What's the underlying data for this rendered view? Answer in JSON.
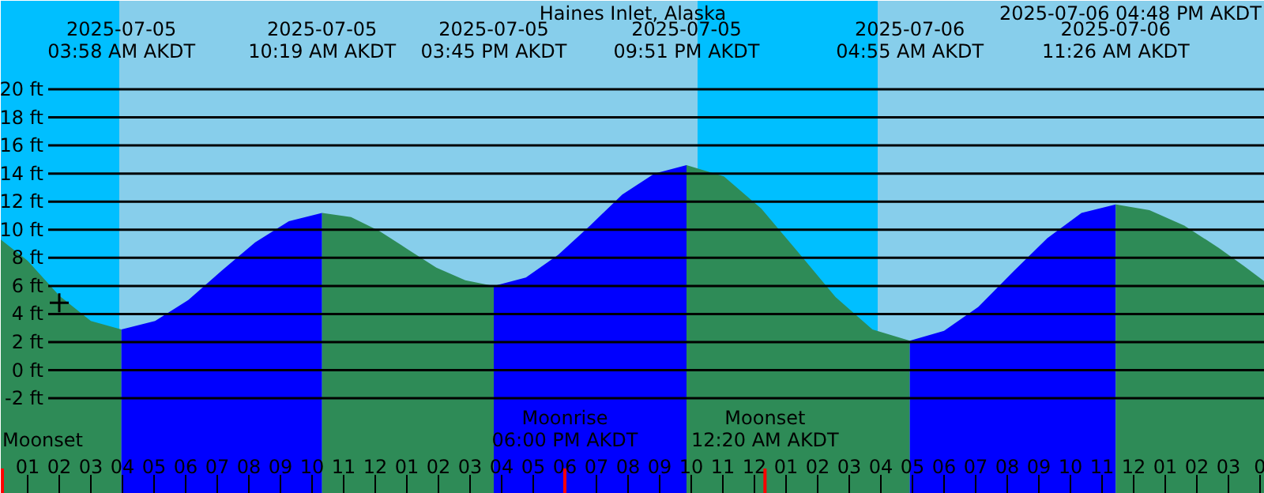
{
  "chart_data": {
    "type": "area",
    "title": "Haines Inlet, Alaska",
    "xlim": [
      "2025-07-05T00:09",
      "2025-07-06T16:09"
    ],
    "ylim": [
      -8.8,
      26.3
    ],
    "xticks": [
      {
        "value": "2025-07-05T01:00",
        "label": "01"
      },
      {
        "value": "2025-07-05T02:00",
        "label": "02"
      },
      {
        "value": "2025-07-05T03:00",
        "label": "03"
      },
      {
        "value": "2025-07-05T04:00",
        "label": "04"
      },
      {
        "value": "2025-07-05T05:00",
        "label": "05"
      },
      {
        "value": "2025-07-05T06:00",
        "label": "06"
      },
      {
        "value": "2025-07-05T07:00",
        "label": "07"
      },
      {
        "value": "2025-07-05T08:00",
        "label": "08"
      },
      {
        "value": "2025-07-05T09:00",
        "label": "09"
      },
      {
        "value": "2025-07-05T10:00",
        "label": "10"
      },
      {
        "value": "2025-07-05T11:00",
        "label": "11"
      },
      {
        "value": "2025-07-05T12:00",
        "label": "12"
      },
      {
        "value": "2025-07-05T13:00",
        "label": "01"
      },
      {
        "value": "2025-07-05T14:00",
        "label": "02"
      },
      {
        "value": "2025-07-05T15:00",
        "label": "03"
      },
      {
        "value": "2025-07-05T16:00",
        "label": "04"
      },
      {
        "value": "2025-07-05T17:00",
        "label": "05"
      },
      {
        "value": "2025-07-05T18:00",
        "label": "06"
      },
      {
        "value": "2025-07-05T19:00",
        "label": "07"
      },
      {
        "value": "2025-07-05T20:00",
        "label": "08"
      },
      {
        "value": "2025-07-05T21:00",
        "label": "09"
      },
      {
        "value": "2025-07-05T22:00",
        "label": "10"
      },
      {
        "value": "2025-07-05T23:00",
        "label": "11"
      },
      {
        "value": "2025-07-06T00:00",
        "label": "12"
      },
      {
        "value": "2025-07-06T01:00",
        "label": "01"
      },
      {
        "value": "2025-07-06T02:00",
        "label": "02"
      },
      {
        "value": "2025-07-06T03:00",
        "label": "03"
      },
      {
        "value": "2025-07-06T04:00",
        "label": "04"
      },
      {
        "value": "2025-07-06T05:00",
        "label": "05"
      },
      {
        "value": "2025-07-06T06:00",
        "label": "06"
      },
      {
        "value": "2025-07-06T07:00",
        "label": "07"
      },
      {
        "value": "2025-07-06T08:00",
        "label": "08"
      },
      {
        "value": "2025-07-06T09:00",
        "label": "09"
      },
      {
        "value": "2025-07-06T10:00",
        "label": "10"
      },
      {
        "value": "2025-07-06T11:00",
        "label": "11"
      },
      {
        "value": "2025-07-06T12:00",
        "label": "12"
      },
      {
        "value": "2025-07-06T13:00",
        "label": "01"
      },
      {
        "value": "2025-07-06T14:00",
        "label": "02"
      },
      {
        "value": "2025-07-06T15:00",
        "label": "03"
      },
      {
        "value": "2025-07-06T16:00",
        "label": "0"
      }
    ],
    "yticks": [
      {
        "value": -2,
        "label": "-2 ft"
      },
      {
        "value": 0,
        "label": "0 ft"
      },
      {
        "value": 2,
        "label": "2 ft"
      },
      {
        "value": 4,
        "label": "4 ft"
      },
      {
        "value": 6,
        "label": "6 ft"
      },
      {
        "value": 8,
        "label": "8 ft"
      },
      {
        "value": 10,
        "label": "10 ft"
      },
      {
        "value": 12,
        "label": "12 ft"
      },
      {
        "value": 14,
        "label": "14 ft"
      },
      {
        "value": 16,
        "label": "16 ft"
      },
      {
        "value": 18,
        "label": "18 ft"
      },
      {
        "value": 20,
        "label": "20 ft"
      }
    ],
    "grid": "y",
    "series": [
      {
        "color": "#2e8b57",
        "x": [
          "2025-07-05T00:09",
          "2025-07-05T01:00",
          "2025-07-05T02:00",
          "2025-07-05T03:00",
          "2025-07-05T03:58"
        ],
        "values": [
          9.3,
          7.8,
          5.3,
          3.5,
          2.9
        ]
      },
      {
        "color": "#0000ff",
        "x": [
          "2025-07-05T03:58",
          "2025-07-05T05:02",
          "2025-07-05T06:05",
          "2025-07-05T07:09",
          "2025-07-05T08:12",
          "2025-07-05T09:16",
          "2025-07-05T10:19"
        ],
        "values": [
          2.9,
          3.5,
          5.0,
          7.1,
          9.1,
          10.6,
          11.2
        ]
      },
      {
        "color": "#2e8b57",
        "x": [
          "2025-07-05T10:19",
          "2025-07-05T11:14",
          "2025-07-05T12:08",
          "2025-07-05T13:02",
          "2025-07-05T13:56",
          "2025-07-05T14:51",
          "2025-07-05T15:45"
        ],
        "values": [
          11.2,
          10.9,
          9.9,
          8.6,
          7.3,
          6.4,
          6.0
        ]
      },
      {
        "color": "#0000ff",
        "x": [
          "2025-07-05T15:45",
          "2025-07-05T16:46",
          "2025-07-05T17:47",
          "2025-07-05T18:48",
          "2025-07-05T19:49",
          "2025-07-05T20:50",
          "2025-07-05T21:51"
        ],
        "values": [
          6.0,
          6.6,
          8.2,
          10.3,
          12.5,
          14.0,
          14.6
        ]
      },
      {
        "color": "#2e8b57",
        "x": [
          "2025-07-05T21:51",
          "2025-07-05T23:02",
          "2025-07-06T00:13",
          "2025-07-06T01:23",
          "2025-07-06T02:34",
          "2025-07-06T03:44",
          "2025-07-06T04:55"
        ],
        "values": [
          14.6,
          13.8,
          11.5,
          8.4,
          5.2,
          2.9,
          2.1
        ]
      },
      {
        "color": "#0000ff",
        "x": [
          "2025-07-06T04:55",
          "2025-07-06T06:00",
          "2025-07-06T07:05",
          "2025-07-06T08:11",
          "2025-07-06T09:16",
          "2025-07-06T10:21",
          "2025-07-06T11:26"
        ],
        "values": [
          2.1,
          2.8,
          4.5,
          7.0,
          9.4,
          11.2,
          11.8
        ]
      },
      {
        "color": "#2e8b57",
        "x": [
          "2025-07-06T11:26",
          "2025-07-06T12:30",
          "2025-07-06T13:36",
          "2025-07-06T14:42",
          "2025-07-06T15:30",
          "2025-07-06T16:09"
        ],
        "values": [
          11.8,
          11.4,
          10.3,
          8.7,
          7.4,
          6.3
        ]
      },
      {
        "type": "scatter",
        "marker": "cross",
        "color": "#000000",
        "x": [
          "2025-07-05T02:00"
        ],
        "values": [
          4.8
        ]
      }
    ],
    "bands": [
      {
        "axis": "x",
        "from": "2025-07-05T00:09",
        "to": "2025-07-05T03:54",
        "color": "#00bfff"
      },
      {
        "axis": "x",
        "from": "2025-07-05T22:12",
        "to": "2025-07-06T03:54",
        "color": "#00bfff"
      }
    ],
    "ref_lines": [
      {
        "axis": "x",
        "value": "2025-07-05T00:12",
        "label": "Moonset",
        "color": "#ff0000"
      },
      {
        "axis": "x",
        "value": "2025-07-05T18:00",
        "label": "Moonrise\n06:00 PM AKDT",
        "color": "#ff0000"
      },
      {
        "axis": "x",
        "value": "2025-07-06T00:20",
        "label": "Moonset\n12:20 AM AKDT",
        "color": "#ff0000"
      }
    ],
    "annotations": [
      "2025-07-05\n03:58 AM AKDT",
      "2025-07-05\n10:19 AM AKDT",
      "2025-07-05\n03:45 PM AKDT",
      "2025-07-05\n09:51 PM AKDT",
      "2025-07-06\n04:55 AM AKDT",
      "2025-07-06\n11:26 AM AKDT",
      "2025-07-06 04:48 PM AKDT"
    ]
  }
}
